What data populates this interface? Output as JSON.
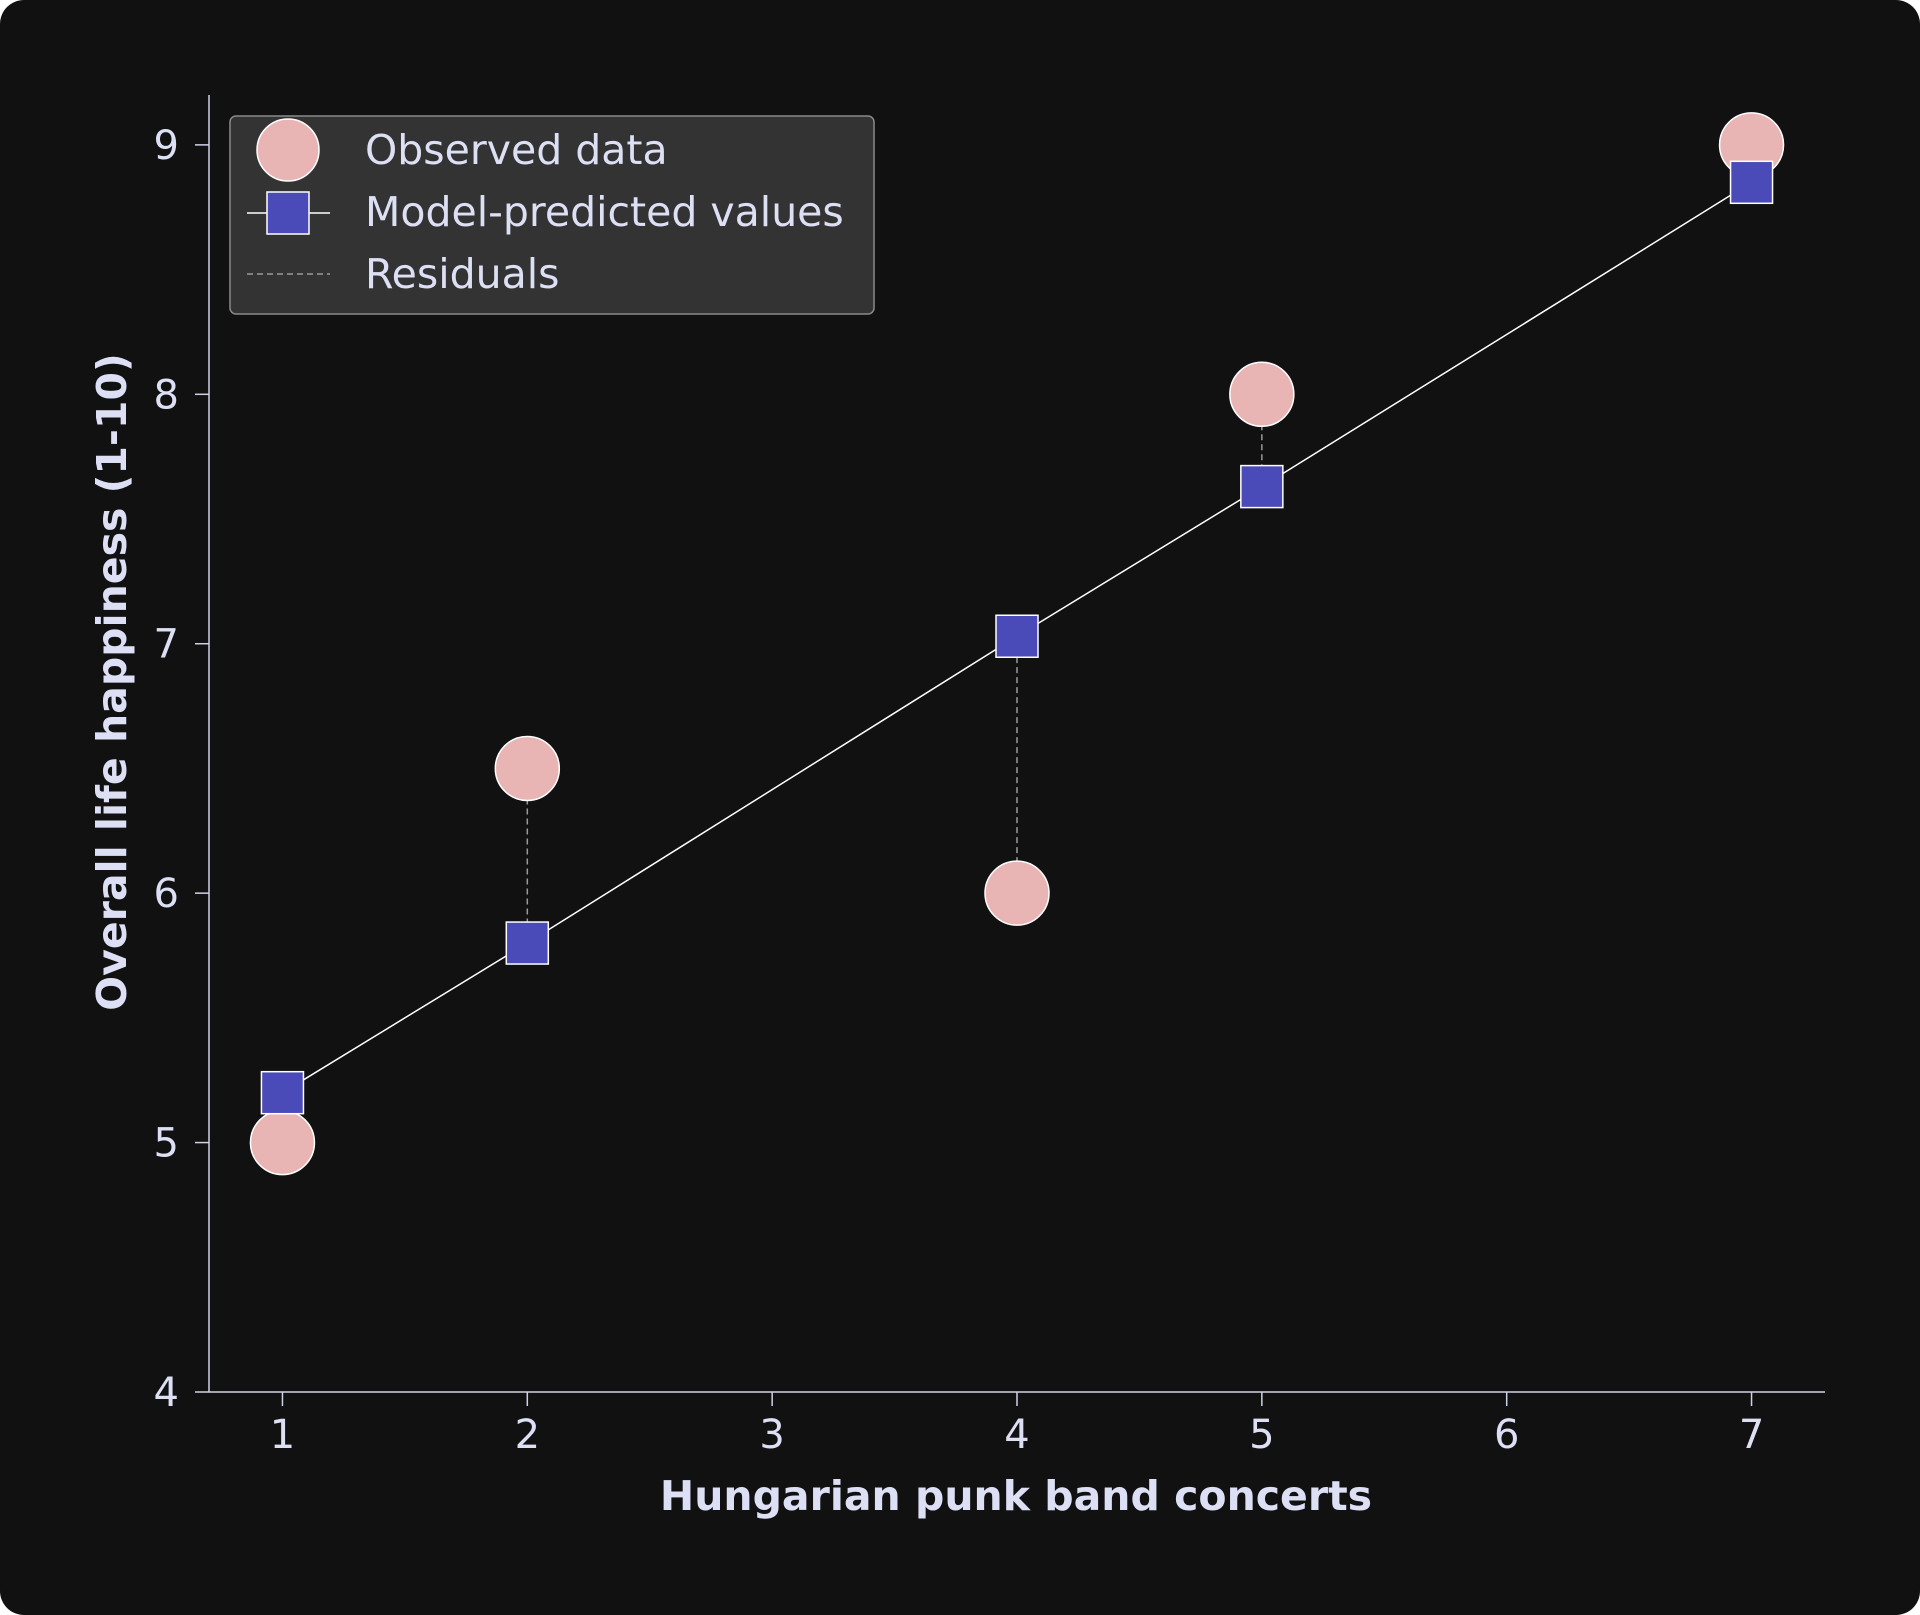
{
  "chart_data": {
    "type": "scatter",
    "xlabel": "Hungarian punk band concerts",
    "ylabel": "Overall life happiness (1-10)",
    "xlim": [
      0.7,
      7.3
    ],
    "ylim": [
      4,
      9.2
    ],
    "x_ticks": [
      1,
      2,
      3,
      4,
      5,
      6,
      7
    ],
    "y_ticks": [
      4,
      5,
      6,
      7,
      8,
      9
    ],
    "grid": false,
    "legend_position": "top-left",
    "series": [
      {
        "name": "Observed data",
        "marker": "circle",
        "color": "#e8b4b4",
        "x": [
          1,
          2,
          4,
          5,
          7
        ],
        "y": [
          5.0,
          6.5,
          6.0,
          8.0,
          9.0
        ]
      },
      {
        "name": "Model-predicted values",
        "marker": "square",
        "line": true,
        "color": "#4a4ab8",
        "line_color": "#ffffff",
        "x": [
          1,
          2,
          4,
          5,
          7
        ],
        "y": [
          5.2,
          5.8,
          7.03,
          7.63,
          8.85
        ]
      },
      {
        "name": "Residuals",
        "style": "dashed",
        "color": "#9a9a9a"
      }
    ]
  }
}
